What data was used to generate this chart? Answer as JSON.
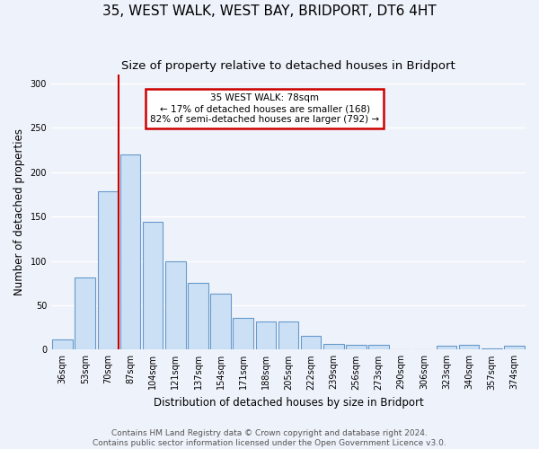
{
  "title": "35, WEST WALK, WEST BAY, BRIDPORT, DT6 4HT",
  "subtitle": "Size of property relative to detached houses in Bridport",
  "xlabel": "Distribution of detached houses by size in Bridport",
  "ylabel": "Number of detached properties",
  "categories": [
    "36sqm",
    "53sqm",
    "70sqm",
    "87sqm",
    "104sqm",
    "121sqm",
    "137sqm",
    "154sqm",
    "171sqm",
    "188sqm",
    "205sqm",
    "222sqm",
    "239sqm",
    "256sqm",
    "273sqm",
    "290sqm",
    "306sqm",
    "323sqm",
    "340sqm",
    "357sqm",
    "374sqm"
  ],
  "values": [
    11,
    81,
    178,
    220,
    144,
    100,
    75,
    63,
    36,
    32,
    32,
    15,
    6,
    5,
    5,
    0,
    0,
    4,
    5,
    1,
    4
  ],
  "bar_color": "#cce0f5",
  "bar_edge_color": "#6699cc",
  "vline_color": "#cc0000",
  "annotation_text": "35 WEST WALK: 78sqm\n← 17% of detached houses are smaller (168)\n82% of semi-detached houses are larger (792) →",
  "annotation_box_color": "#ffffff",
  "annotation_box_edge": "#cc0000",
  "ylim": [
    0,
    310
  ],
  "yticks": [
    0,
    50,
    100,
    150,
    200,
    250,
    300
  ],
  "footer1": "Contains HM Land Registry data © Crown copyright and database right 2024.",
  "footer2": "Contains public sector information licensed under the Open Government Licence v3.0.",
  "background_color": "#eef2fa",
  "grid_color": "#ffffff",
  "title_fontsize": 11,
  "subtitle_fontsize": 9.5,
  "label_fontsize": 8.5,
  "tick_fontsize": 7,
  "footer_fontsize": 6.5
}
